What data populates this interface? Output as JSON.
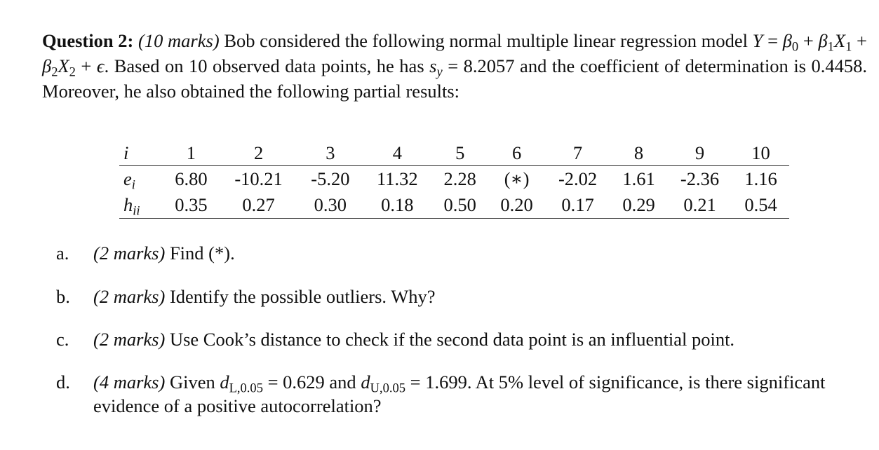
{
  "question": {
    "runs": [
      {
        "text": "Question 2:",
        "style": "bold"
      },
      {
        "text": " ",
        "style": "normal"
      },
      {
        "text": "(10 marks)",
        "style": "italic"
      },
      {
        "text": " Bob considered the following normal multiple linear regression model ",
        "style": "normal"
      },
      {
        "text": "Y",
        "style": "math"
      },
      {
        "text": " = ",
        "style": "normal"
      },
      {
        "text": "β",
        "style": "math"
      },
      {
        "text": "0",
        "style": "sub"
      },
      {
        "text": " + ",
        "style": "normal"
      },
      {
        "text": "β",
        "style": "math"
      },
      {
        "text": "1",
        "style": "sub"
      },
      {
        "text": "X",
        "style": "math"
      },
      {
        "text": "1",
        "style": "sub"
      },
      {
        "text": " + ",
        "style": "normal"
      },
      {
        "text": "β",
        "style": "math"
      },
      {
        "text": "2",
        "style": "sub"
      },
      {
        "text": "X",
        "style": "math"
      },
      {
        "text": "2",
        "style": "sub"
      },
      {
        "text": " + ",
        "style": "normal"
      },
      {
        "text": "ϵ",
        "style": "math"
      },
      {
        "text": ". Based on 10 observed data points, he has ",
        "style": "normal"
      },
      {
        "text": "s",
        "style": "math"
      },
      {
        "text": "y",
        "style": "sub-math"
      },
      {
        "text": " = 8.2057 and the coefficient of determination is 0.4458. Moreover, he also obtained the following partial results:",
        "style": "normal"
      }
    ]
  },
  "table": {
    "header": {
      "label": "i",
      "cells": [
        "1",
        "2",
        "3",
        "4",
        "5",
        "6",
        "7",
        "8",
        "9",
        "10"
      ]
    },
    "rows": [
      {
        "label": {
          "base": "e",
          "sub": "i"
        },
        "cells": [
          "6.80",
          "-10.21",
          "-5.20",
          "11.32",
          "2.28",
          "(∗)",
          "-2.02",
          "1.61",
          "-2.36",
          "1.16"
        ]
      },
      {
        "label": {
          "base": "h",
          "sub": "ii"
        },
        "cells": [
          "0.35",
          "0.27",
          "0.30",
          "0.18",
          "0.50",
          "0.20",
          "0.17",
          "0.29",
          "0.21",
          "0.54"
        ]
      }
    ]
  },
  "parts": [
    {
      "letter": "a.",
      "runs": [
        {
          "text": "(2 marks)",
          "style": "italic"
        },
        {
          "text": " Find (*).",
          "style": "normal"
        }
      ]
    },
    {
      "letter": "b.",
      "runs": [
        {
          "text": "(2 marks)",
          "style": "italic"
        },
        {
          "text": " Identify the possible outliers. Why?",
          "style": "normal"
        }
      ]
    },
    {
      "letter": "c.",
      "runs": [
        {
          "text": "(2 marks)",
          "style": "italic"
        },
        {
          "text": " Use Cook’s distance to check if the second data point is an influential point.",
          "style": "normal"
        }
      ]
    },
    {
      "letter": "d.",
      "runs": [
        {
          "text": "(4 marks)",
          "style": "italic"
        },
        {
          "text": " Given ",
          "style": "normal"
        },
        {
          "text": "d",
          "style": "math"
        },
        {
          "text": "L,0.05",
          "style": "sub"
        },
        {
          "text": " = 0.629 and ",
          "style": "normal"
        },
        {
          "text": "d",
          "style": "math"
        },
        {
          "text": "U,0.05",
          "style": "sub"
        },
        {
          "text": " = 1.699. At 5% level of significance, is there significant evidence of a positive autocorrelation?",
          "style": "normal"
        }
      ]
    }
  ]
}
